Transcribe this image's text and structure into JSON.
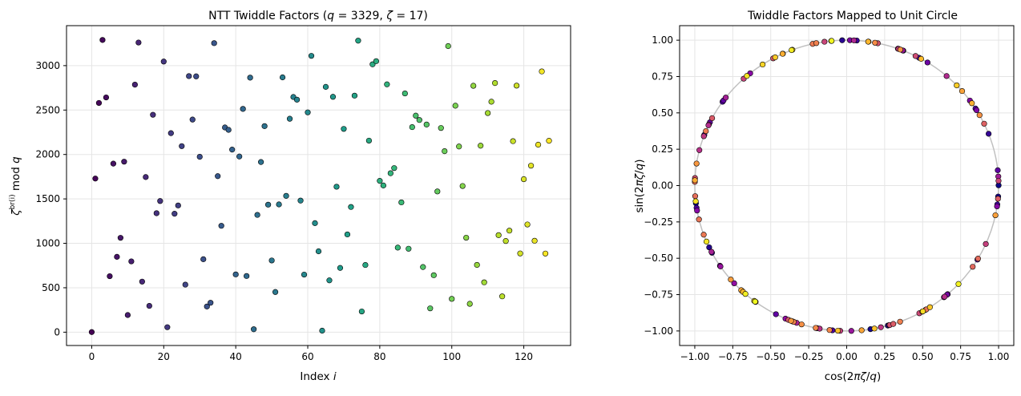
{
  "chart_data": [
    {
      "type": "scatter",
      "title_parts": [
        "NTT Twiddle Factors (",
        "q",
        " = 3329, ",
        "ζ",
        " = 17)"
      ],
      "xlabel_parts": [
        "Index ",
        "i"
      ],
      "ylabel_parts": [
        "ζ",
        "br(i)",
        " mod ",
        "q"
      ],
      "xlim": [
        -7,
        133
      ],
      "ylim": [
        -150,
        3450
      ],
      "xticks": [
        "0",
        "20",
        "40",
        "60",
        "80",
        "100",
        "120"
      ],
      "yticks": [
        "0",
        "500",
        "1000",
        "1500",
        "2000",
        "2500",
        "3000"
      ],
      "grid": true,
      "colormap": "viridis",
      "color_encodes": "index i",
      "x": [
        0,
        1,
        2,
        3,
        4,
        5,
        6,
        7,
        8,
        9,
        10,
        11,
        12,
        13,
        14,
        15,
        16,
        17,
        18,
        19,
        20,
        21,
        22,
        23,
        24,
        25,
        26,
        27,
        28,
        29,
        30,
        31,
        32,
        33,
        34,
        35,
        36,
        37,
        38,
        39,
        40,
        41,
        42,
        43,
        44,
        45,
        46,
        47,
        48,
        49,
        50,
        51,
        52,
        53,
        54,
        55,
        56,
        57,
        58,
        59,
        60,
        61,
        62,
        63,
        64,
        65,
        66,
        67,
        68,
        69,
        70,
        71,
        72,
        73,
        74,
        75,
        76,
        77,
        78,
        79,
        80,
        81,
        82,
        83,
        84,
        85,
        86,
        87,
        88,
        89,
        90,
        91,
        92,
        93,
        94,
        95,
        96,
        97,
        98,
        99,
        100,
        101,
        102,
        103,
        104,
        105,
        106,
        107,
        108,
        109,
        110,
        111,
        112,
        113,
        114,
        115,
        116,
        117,
        118,
        119,
        120,
        121,
        122,
        123,
        124,
        125,
        126,
        127
      ],
      "y": [
        1,
        1729,
        2580,
        3289,
        2642,
        630,
        1897,
        848,
        1062,
        1919,
        193,
        797,
        2786,
        3260,
        569,
        1746,
        296,
        2447,
        1339,
        1476,
        3046,
        56,
        2240,
        1333,
        1426,
        2094,
        535,
        2882,
        2393,
        2879,
        1974,
        821,
        289,
        331,
        3253,
        1756,
        1197,
        2304,
        2277,
        2055,
        650,
        1977,
        2513,
        632,
        2865,
        33,
        1320,
        1915,
        2319,
        1435,
        807,
        452,
        1438,
        2868,
        1534,
        2402,
        2647,
        2617,
        1481,
        648,
        2474,
        3110,
        1227,
        910,
        17,
        2761,
        583,
        2649,
        1637,
        723,
        2288,
        1100,
        1409,
        2662,
        3281,
        233,
        756,
        2156,
        3015,
        3050,
        1703,
        1651,
        2789,
        1789,
        1847,
        952,
        1461,
        2687,
        939,
        2308,
        2437,
        2388,
        733,
        2337,
        268,
        641,
        1584,
        2298,
        2037,
        3220,
        375,
        2549,
        2090,
        1645,
        1063,
        319,
        2773,
        757,
        2099,
        561,
        2466,
        2594,
        2804,
        1092,
        403,
        1026,
        1143,
        2150,
        2775,
        886,
        1722,
        1212,
        1874,
        1029,
        2110,
        2935,
        885,
        2154
      ]
    },
    {
      "type": "scatter",
      "title": "Twiddle Factors Mapped to Unit Circle",
      "xlabel_parts": [
        "cos(2",
        "πζ",
        "/",
        "q",
        ")"
      ],
      "ylabel_parts": [
        "sin(2",
        "πζ",
        "/",
        "q",
        ")"
      ],
      "xlim": [
        -1.1,
        1.1
      ],
      "ylim": [
        -1.1,
        1.1
      ],
      "xticks": [
        "−1.00",
        "−0.75",
        "−0.50",
        "−0.25",
        "0.00",
        "0.25",
        "0.50",
        "0.75",
        "1.00"
      ],
      "yticks": [
        "−1.00",
        "−0.75",
        "−0.50",
        "−0.25",
        "0.00",
        "0.25",
        "0.50",
        "0.75",
        "1.00"
      ],
      "grid": true,
      "reference_circle": {
        "radius": 1,
        "color": "#c0c0c0"
      },
      "colormap": "plasma",
      "color_encodes": "index i",
      "points_source": "points (cos(2πζ/q), sin(2πζ/q)) for the same ζ values as the left chart, q = 3329",
      "q": 3329
    }
  ]
}
